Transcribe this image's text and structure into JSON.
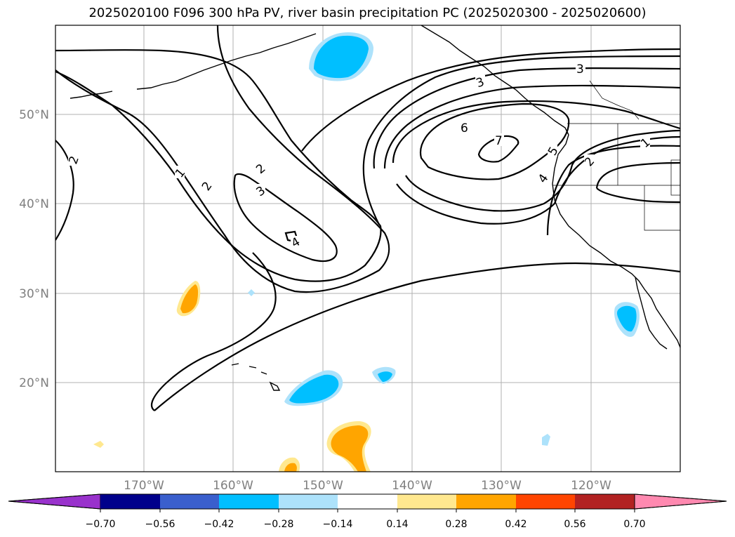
{
  "title": "2025020100 F096 300 hPa PV, river basin precipitation PC (2025020300 - 2025020600)",
  "colors": {
    "contour": "#000000",
    "grid": "#b0b0b0",
    "coast": "#000000",
    "neg_strong": "#00bfff",
    "neg_weak": "#ade2fb",
    "pos_weak": "#ffe88f",
    "pos_strong": "#ffa500"
  },
  "longitude_labels": [
    "170°W",
    "160°W",
    "150°W",
    "140°W",
    "130°W",
    "120°W"
  ],
  "latitude_labels": [
    "50°N",
    "40°N",
    "30°N",
    "20°N"
  ],
  "pv_contour_labels": [
    "2",
    "1",
    "2",
    "2",
    "3",
    "4",
    "6",
    "7",
    "5",
    "4",
    "3",
    "3",
    "2",
    "1"
  ],
  "colorbar": {
    "ticks": [
      "−0.70",
      "−0.56",
      "−0.42",
      "−0.28",
      "−0.14",
      "0.14",
      "0.28",
      "0.42",
      "0.56",
      "0.70"
    ],
    "colors": [
      "#9932cc",
      "#00008b",
      "#3a5fcd",
      "#00bfff",
      "#ade2fb",
      "#ffffff",
      "#ffe88f",
      "#ffa500",
      "#ff4500",
      "#b22222",
      "#ff89b0"
    ]
  }
}
